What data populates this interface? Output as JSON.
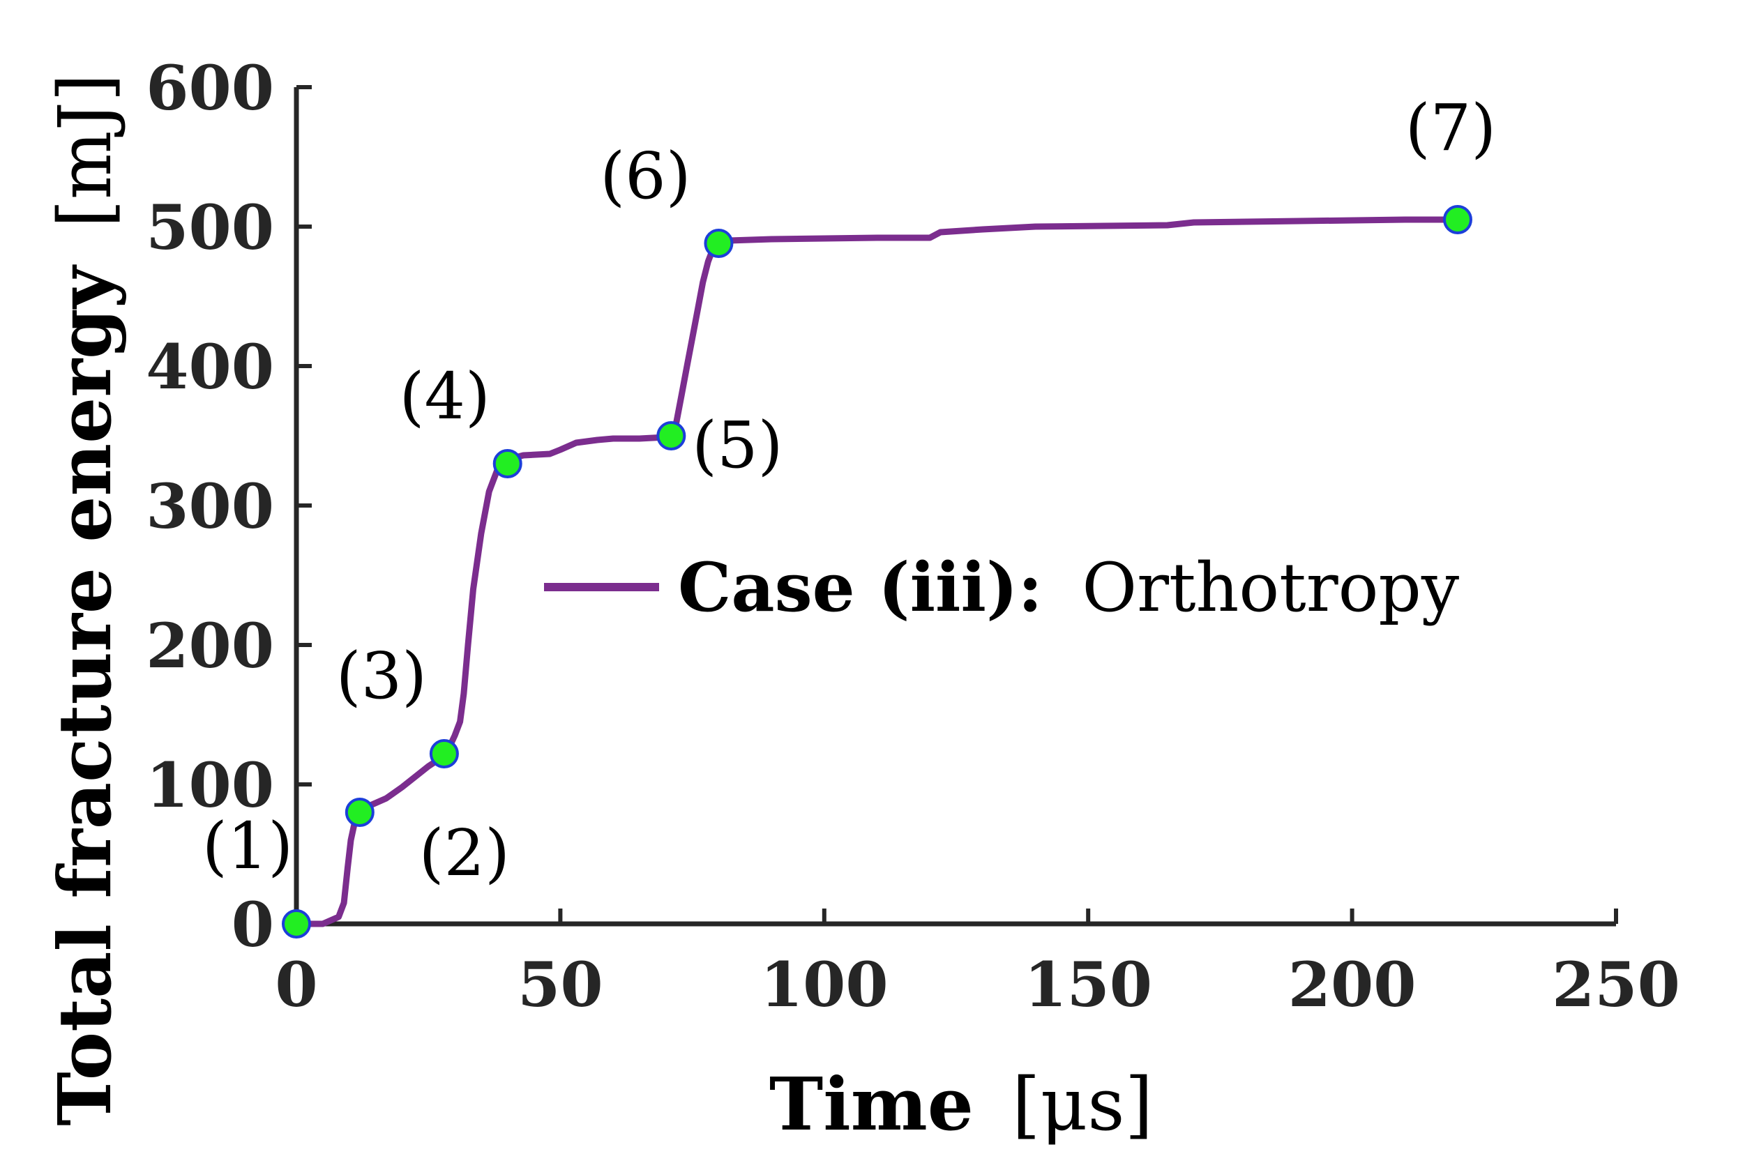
{
  "chart_data": {
    "type": "line",
    "xlabel_bold": "Time",
    "xlabel_unit": "[μs]",
    "ylabel_bold": "Total fracture energy",
    "ylabel_unit": "[mJ]",
    "xlim": [
      0,
      250
    ],
    "ylim": [
      0,
      600
    ],
    "x_ticks": [
      0,
      50,
      100,
      150,
      200,
      250
    ],
    "y_ticks": [
      0,
      100,
      200,
      300,
      400,
      500,
      600
    ],
    "grid": false,
    "legend_position": "center-right",
    "series": [
      {
        "name_bold": "Case (iii):",
        "name_rest": "Orthotropy",
        "color": "#7b2d8e",
        "x": [
          0,
          5,
          8,
          9,
          9.7,
          10.3,
          11,
          12,
          14,
          17,
          20,
          23,
          25,
          27,
          28,
          29,
          30,
          31,
          31.7,
          32.5,
          33.5,
          35,
          36.5,
          38,
          39,
          40,
          43,
          48,
          50,
          53,
          57,
          60,
          65,
          70,
          71,
          72,
          73,
          74,
          75,
          76,
          77,
          78,
          79,
          80,
          82,
          90,
          110,
          120,
          122,
          130,
          140,
          165,
          170,
          190,
          210,
          220
        ],
        "y": [
          0,
          0,
          5,
          15,
          40,
          60,
          72,
          80,
          85,
          90,
          98,
          107,
          113,
          118,
          122,
          127,
          135,
          145,
          165,
          200,
          240,
          280,
          310,
          325,
          330,
          333,
          336,
          337,
          340,
          345,
          347,
          348,
          348,
          349,
          351,
          360,
          380,
          400,
          420,
          440,
          460,
          475,
          485,
          488,
          490,
          491,
          492,
          492,
          496,
          498,
          500,
          501,
          503,
          504,
          505,
          505
        ]
      }
    ],
    "markers": {
      "color": "#22ee22",
      "edge_color": "#1c3fd9",
      "points": [
        {
          "label": "(1)",
          "x": 0,
          "y": 0
        },
        {
          "label": "(2)",
          "x": 12,
          "y": 80
        },
        {
          "label": "(3)",
          "x": 28,
          "y": 122
        },
        {
          "label": "(4)",
          "x": 40,
          "y": 330
        },
        {
          "label": "(5)",
          "x": 71,
          "y": 350
        },
        {
          "label": "(6)",
          "x": 80,
          "y": 488
        },
        {
          "label": "(7)",
          "x": 220,
          "y": 505
        }
      ]
    }
  }
}
